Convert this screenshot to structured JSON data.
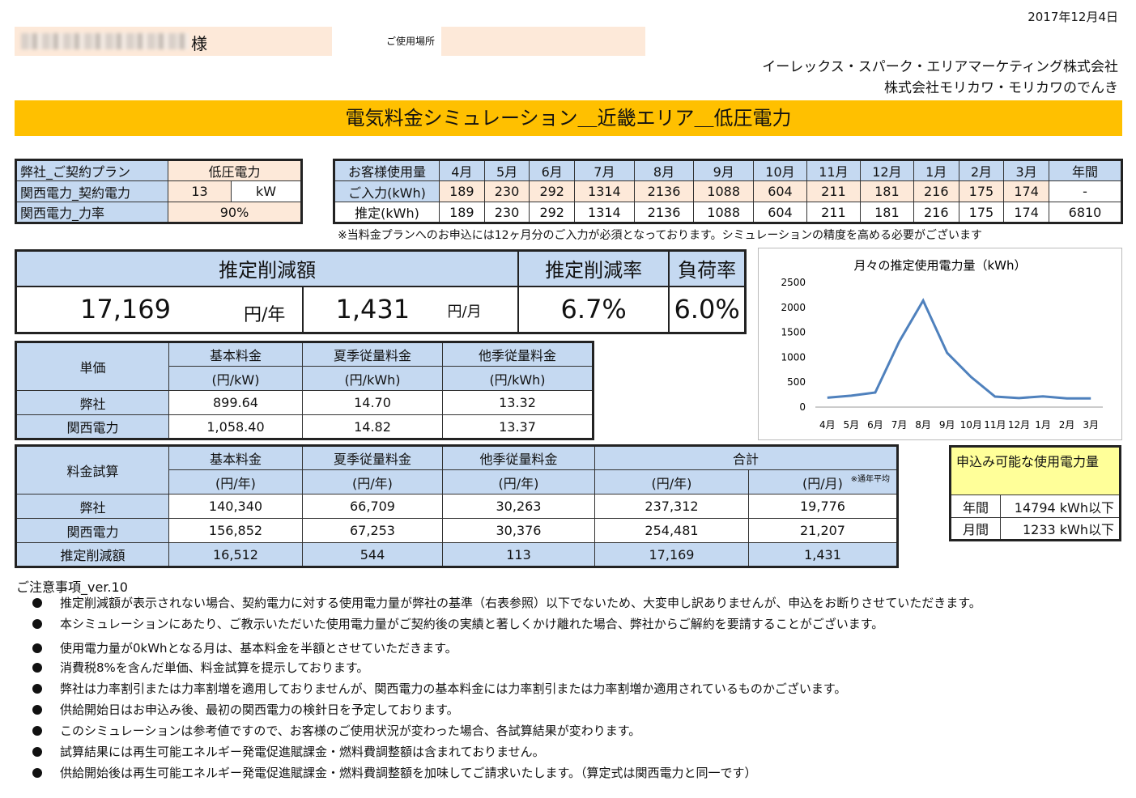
{
  "header": {
    "date": "2017年12月4日",
    "customer_suffix": "様",
    "usage_place_label": "ご使用場所",
    "company1": "イーレックス・スパーク・エリアマーケティング株式会社",
    "company2": "株式会社モリカワ・モリカワのでんき",
    "banner": "電気料金シミュレーション＿近畿エリア＿低圧電力"
  },
  "plan": {
    "rows": [
      {
        "label": "弊社_ご契約プラン",
        "value": "低圧電力"
      },
      {
        "label": "関西電力_契約電力",
        "value": "13",
        "unit": "kW"
      },
      {
        "label": "関西電力_力率",
        "value": "90%"
      }
    ]
  },
  "usage": {
    "header_label": "お客様使用量",
    "months": [
      "4月",
      "5月",
      "6月",
      "7月",
      "8月",
      "9月",
      "10月",
      "11月",
      "12月",
      "1月",
      "2月",
      "3月"
    ],
    "annual_label": "年間",
    "input_label": "ご入力(kWh)",
    "input_values": [
      "189",
      "230",
      "292",
      "1314",
      "2136",
      "1088",
      "604",
      "211",
      "181",
      "216",
      "175",
      "174"
    ],
    "input_annual": "-",
    "estimate_label": "推定(kWh)",
    "estimate_values": [
      "189",
      "230",
      "292",
      "1314",
      "2136",
      "1088",
      "604",
      "211",
      "181",
      "216",
      "175",
      "174"
    ],
    "estimate_annual": "6810",
    "note": "※当料金プランへのお申込には12ヶ月分のご入力が必須となっております。シミュレーションの精度を高める必要がございます"
  },
  "summary": {
    "reduction_label": "推定削減額",
    "reduction_rate_label": "推定削減率",
    "load_factor_label": "負荷率",
    "yearly_value": "17,169",
    "yearly_unit": "円/年",
    "monthly_value": "1,431",
    "monthly_unit": "円/月",
    "rate_value": "6.7%",
    "load_value": "6.0%"
  },
  "unit_price": {
    "title": "単価",
    "col1": "基本料金",
    "col1_unit": "(円/kW)",
    "col2": "夏季従量料金",
    "col2_unit": "(円/kWh)",
    "col3": "他季従量料金",
    "col3_unit": "(円/kWh)",
    "rows": [
      {
        "label": "弊社",
        "v1": "899.64",
        "v2": "14.70",
        "v3": "13.32"
      },
      {
        "label": "関西電力",
        "v1": "1,058.40",
        "v2": "14.82",
        "v3": "13.37"
      }
    ]
  },
  "calc": {
    "title": "料金試算",
    "col1": "基本料金",
    "col1_unit": "(円/年)",
    "col2": "夏季従量料金",
    "col2_unit": "(円/年)",
    "col3": "他季従量料金",
    "col3_unit": "(円/年)",
    "col4": "合計",
    "col4_unit_year": "(円/年)",
    "col4_unit_month": "(円/月)",
    "avg_note": "※通年平均",
    "rows": [
      {
        "label": "弊社",
        "v1": "140,340",
        "v2": "66,709",
        "v3": "30,263",
        "v4": "237,312",
        "v5": "19,776"
      },
      {
        "label": "関西電力",
        "v1": "156,852",
        "v2": "67,253",
        "v3": "30,376",
        "v4": "254,481",
        "v5": "21,207"
      },
      {
        "label": "推定削減額",
        "v1": "16,512",
        "v2": "544",
        "v3": "113",
        "v4": "17,169",
        "v5": "1,431"
      }
    ]
  },
  "available": {
    "title": "申込み可能な使用電力量",
    "rows": [
      {
        "label": "年間",
        "value": "14794 kWh以下"
      },
      {
        "label": "月間",
        "value": "1233 kWh以下"
      }
    ]
  },
  "notes": {
    "title": "ご注意事項_ver.10",
    "items": [
      "推定削減額が表示されない場合、契約電力に対する使用電力量が弊社の基準（右表参照）以下でないため、大変申し訳ありませんが、申込をお断りさせていただきます。",
      "本シミュレーションにあたり、ご教示いただいた使用電力量がご契約後の実績と著しくかけ離れた場合、弊社からご解約を要請することがございます。",
      "使用電力量が0kWhとなる月は、基本料金を半額とさせていただきます。",
      "消費税8%を含んだ単価、料金試算を提示しております。",
      "弊社は力率割引または力率割増を適用しておりませんが、関西電力の基本料金には力率割引または力率割増か適用されているものかございます。",
      "供給開始日はお申込み後、最初の関西電力の検針日を予定しております。",
      "このシミュレーションは参考値ですので、お客様のご使用状況が変わった場合、各試算結果が変わります。",
      "試算結果には再生可能エネルギー発電促進賦課金・燃料費調整額は含まれておりません。",
      "供給開始後は再生可能エネルギー発電促進賦課金・燃料費調整額を加味してご請求いたします。（算定式は関西電力と同一です）"
    ]
  },
  "chart_data": {
    "type": "line",
    "title": "月々の推定使用電力量（kWh）",
    "categories": [
      "4月",
      "5月",
      "6月",
      "7月",
      "8月",
      "9月",
      "10月",
      "11月",
      "12月",
      "1月",
      "2月",
      "3月"
    ],
    "values": [
      189,
      230,
      292,
      1314,
      2136,
      1088,
      604,
      211,
      181,
      216,
      175,
      174
    ],
    "ylim": [
      0,
      2500
    ],
    "yticks": [
      0,
      500,
      1000,
      1500,
      2000,
      2500
    ],
    "grid": false,
    "color": "#4f81bd"
  }
}
